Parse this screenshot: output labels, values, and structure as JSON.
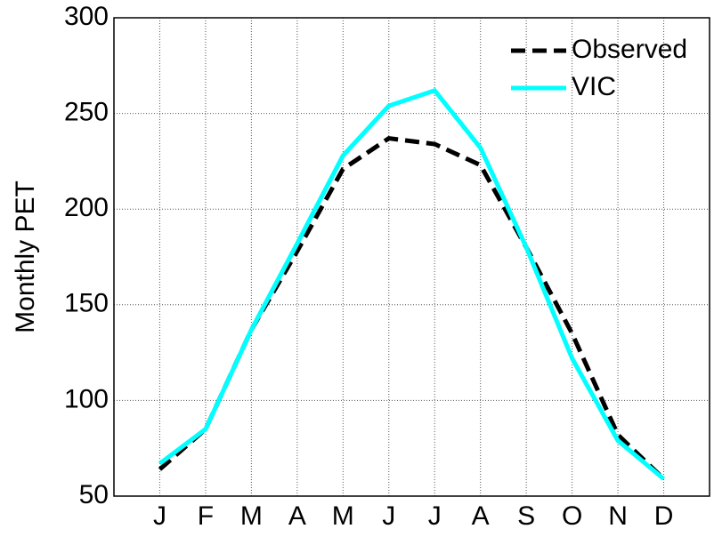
{
  "chart_data": {
    "type": "line",
    "y_label": "Monthly PET",
    "categories": [
      "J",
      "F",
      "M",
      "A",
      "M",
      "J",
      "J",
      "A",
      "S",
      "O",
      "N",
      "D"
    ],
    "series": [
      {
        "name": "Observed",
        "color": "#000000",
        "dash": true,
        "values": [
          64,
          85,
          137,
          178,
          221,
          237,
          234,
          223,
          180,
          135,
          82,
          59
        ]
      },
      {
        "name": "VIC",
        "color": "#00ffff",
        "dash": false,
        "values": [
          67,
          85,
          137,
          182,
          228,
          254,
          262,
          232,
          180,
          122,
          79,
          59
        ]
      }
    ],
    "ylim": [
      50,
      300
    ],
    "yticks": [
      50,
      100,
      150,
      200,
      250,
      300
    ],
    "grid": true
  }
}
